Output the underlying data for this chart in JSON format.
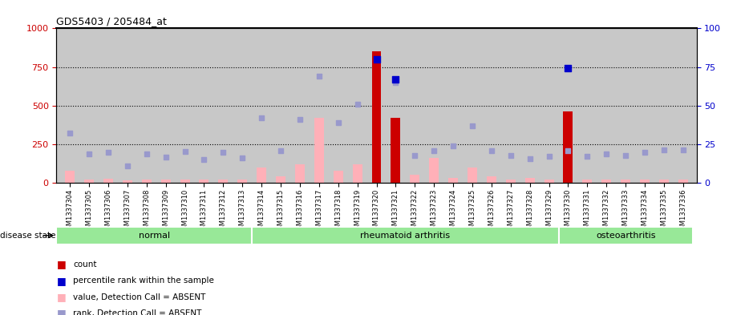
{
  "title": "GDS5403 / 205484_at",
  "samples": [
    "GSM1337304",
    "GSM1337305",
    "GSM1337306",
    "GSM1337307",
    "GSM1337308",
    "GSM1337309",
    "GSM1337310",
    "GSM1337311",
    "GSM1337312",
    "GSM1337313",
    "GSM1337314",
    "GSM1337315",
    "GSM1337316",
    "GSM1337317",
    "GSM1337318",
    "GSM1337319",
    "GSM1337320",
    "GSM1337321",
    "GSM1337322",
    "GSM1337323",
    "GSM1337324",
    "GSM1337325",
    "GSM1337326",
    "GSM1337327",
    "GSM1337328",
    "GSM1337329",
    "GSM1337330",
    "GSM1337331",
    "GSM1337332",
    "GSM1337333",
    "GSM1337334",
    "GSM1337335",
    "GSM1337336"
  ],
  "bar_values": [
    80,
    20,
    25,
    15,
    20,
    20,
    20,
    20,
    20,
    20,
    100,
    40,
    120,
    420,
    80,
    120,
    850,
    420,
    50,
    160,
    30,
    100,
    40,
    20,
    30,
    20,
    460,
    20,
    20,
    20,
    20,
    20,
    20
  ],
  "bar_colors": [
    "pink",
    "pink",
    "pink",
    "pink",
    "pink",
    "pink",
    "pink",
    "pink",
    "pink",
    "pink",
    "pink",
    "pink",
    "pink",
    "pink",
    "pink",
    "pink",
    "red",
    "red",
    "pink",
    "pink",
    "pink",
    "pink",
    "pink",
    "pink",
    "pink",
    "pink",
    "red",
    "pink",
    "pink",
    "pink",
    "pink",
    "pink",
    "pink"
  ],
  "rank_dots": [
    320,
    185,
    195,
    110,
    185,
    165,
    200,
    150,
    195,
    160,
    420,
    210,
    410,
    690,
    390,
    510,
    800,
    650,
    175,
    205,
    240,
    370,
    205,
    175,
    155,
    170,
    210,
    170,
    185,
    175,
    195,
    215,
    215
  ],
  "percentile_dots": [
    null,
    null,
    null,
    null,
    null,
    null,
    null,
    null,
    null,
    null,
    null,
    null,
    null,
    null,
    null,
    null,
    80,
    67,
    null,
    null,
    null,
    null,
    null,
    null,
    null,
    null,
    74,
    null,
    null,
    null,
    null,
    null,
    null
  ],
  "ylim_left": [
    0,
    1000
  ],
  "ylim_right": [
    0,
    100
  ],
  "yticks_left": [
    0,
    250,
    500,
    750,
    1000
  ],
  "yticks_right": [
    0,
    25,
    50,
    75,
    100
  ],
  "group_boundaries": [
    0,
    10,
    26,
    33
  ],
  "group_labels": [
    "normal",
    "rheumatoid arthritis",
    "osteoarthritis"
  ],
  "group_color": "#98e898",
  "bar_width": 0.5,
  "background_color": "#c8c8c8",
  "left_axis_color": "#cc0000",
  "right_axis_color": "#0000cc",
  "pink_color": "#ffb0b8",
  "red_color": "#cc0000",
  "dot_color": "#9999cc",
  "blue_dot_color": "#0000cc"
}
